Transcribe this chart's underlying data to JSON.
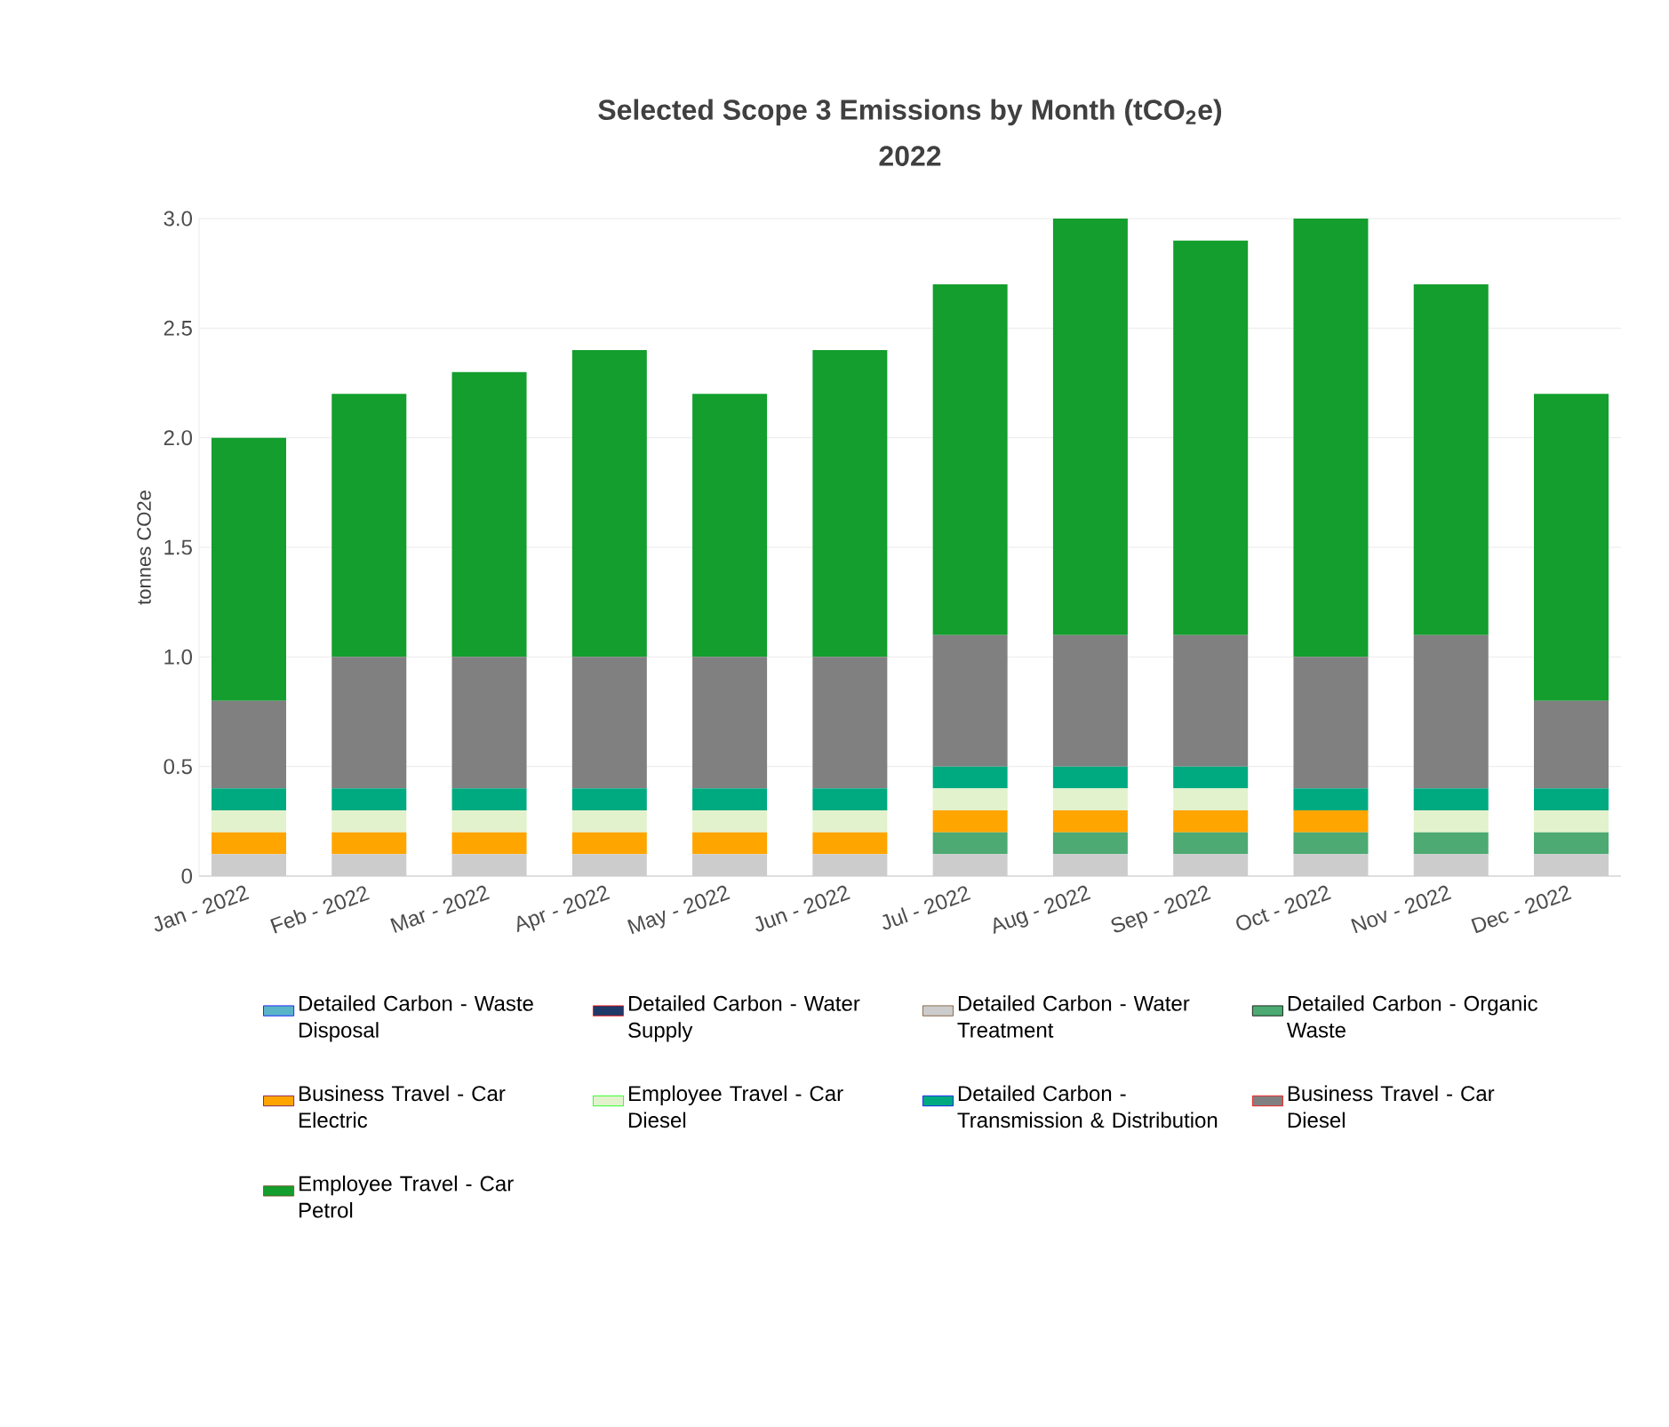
{
  "chart_data": {
    "type": "bar",
    "stacked": true,
    "title": "Selected Scope 3 Emissions by Month (tCO$_{2}$e)",
    "subtitle": "2022",
    "ylabel": "tonnes CO2e",
    "categories": [
      "Jan - 2022",
      "Feb - 2022",
      "Mar - 2022",
      "Apr - 2022",
      "May - 2022",
      "Jun - 2022",
      "Jul - 2022",
      "Aug - 2022",
      "Sep - 2022",
      "Oct - 2022",
      "Nov - 2022",
      "Dec - 2022"
    ],
    "ylim": [
      0,
      3
    ],
    "yticks": [
      0,
      0.5,
      {
        "value": 1,
        "label": "1.0"
      },
      1.5,
      {
        "value": 2,
        "label": "2.0"
      },
      2.5,
      {
        "value": 3,
        "label": "3.0"
      }
    ],
    "grid": "y",
    "legend": "bottom",
    "series": [
      {
        "name": "Detailed Carbon - Waste Disposal",
        "color": "#5ab4c8",
        "values": [
          0,
          0,
          0,
          0,
          0,
          0,
          0,
          0,
          0,
          0,
          0,
          0
        ]
      },
      {
        "name": "Detailed Carbon - Water Supply",
        "color": "#1f3a68",
        "values": [
          0,
          0,
          0,
          0,
          0,
          0,
          0,
          0,
          0,
          0,
          0,
          0
        ]
      },
      {
        "name": "Detailed Carbon - Water Treatment",
        "color": "#cccccc",
        "values": [
          0.1,
          0.1,
          0.1,
          0.1,
          0.1,
          0.1,
          0.1,
          0.1,
          0.1,
          0.1,
          0.1,
          0.1
        ]
      },
      {
        "name": "Detailed Carbon - Organic Waste",
        "color": "#4caa72",
        "values": [
          0,
          0,
          0,
          0,
          0,
          0,
          0.1,
          0.1,
          0.1,
          0.1,
          0.1,
          0.1
        ]
      },
      {
        "name": "Business Travel - Car Electric",
        "color": "#ffa500",
        "values": [
          0.1,
          0.1,
          0.1,
          0.1,
          0.1,
          0.1,
          0.1,
          0.1,
          0.1,
          0.1,
          0,
          0
        ]
      },
      {
        "name": "Employee Travel - Car Diesel",
        "color": "#e2f2cc",
        "values": [
          0.1,
          0.1,
          0.1,
          0.1,
          0.1,
          0.1,
          0.1,
          0.1,
          0.1,
          0,
          0.1,
          0.1
        ]
      },
      {
        "name": "Detailed Carbon - Transmission & Distribution",
        "color": "#00aa80",
        "values": [
          0.1,
          0.1,
          0.1,
          0.1,
          0.1,
          0.1,
          0.1,
          0.1,
          0.1,
          0.1,
          0.1,
          0.1
        ]
      },
      {
        "name": "Business Travel - Car Diesel",
        "color": "#808080",
        "values": [
          0.4,
          0.6,
          0.6,
          0.6,
          0.6,
          0.6,
          0.6,
          0.6,
          0.6,
          0.6,
          0.7,
          0.4
        ]
      },
      {
        "name": "Employee Travel - Car Petrol",
        "color": "#139e2e",
        "values": [
          1.2,
          1.2,
          1.3,
          1.4,
          1.2,
          1.4,
          1.6,
          1.9,
          1.8,
          2.0,
          1.6,
          1.4
        ]
      }
    ]
  }
}
